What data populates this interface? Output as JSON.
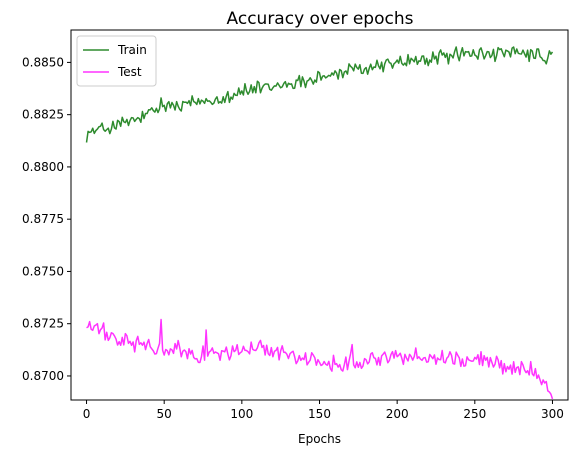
{
  "chart_data": {
    "type": "line",
    "title": "Accuracy over epochs",
    "xlabel": "Epochs",
    "ylabel": "",
    "xlim": [
      -10,
      310
    ],
    "ylim": [
      0.86885,
      0.88655
    ],
    "xticks": [
      0,
      50,
      100,
      150,
      200,
      250,
      300
    ],
    "xtick_labels": [
      "0",
      "50",
      "100",
      "150",
      "200",
      "250",
      "300"
    ],
    "yticks": [
      0.87,
      0.8725,
      0.875,
      0.8775,
      0.88,
      0.8825,
      0.885
    ],
    "ytick_labels": [
      "0.8700",
      "0.8725",
      "0.8750",
      "0.8775",
      "0.8800",
      "0.8825",
      "0.8850"
    ],
    "grid": false,
    "legend_position": "top-left",
    "series": [
      {
        "name": "Train",
        "color": "#2e8b2e",
        "anchors": [
          [
            0,
            0.8816
          ],
          [
            10,
            0.8818
          ],
          [
            20,
            0.882
          ],
          [
            30,
            0.8822
          ],
          [
            40,
            0.8825
          ],
          [
            50,
            0.8829
          ],
          [
            60,
            0.8829
          ],
          [
            70,
            0.8831
          ],
          [
            80,
            0.8832
          ],
          [
            90,
            0.8834
          ],
          [
            100,
            0.8836
          ],
          [
            110,
            0.8837
          ],
          [
            120,
            0.8838
          ],
          [
            130,
            0.884
          ],
          [
            140,
            0.8841
          ],
          [
            150,
            0.8843
          ],
          [
            160,
            0.8844
          ],
          [
            170,
            0.8846
          ],
          [
            180,
            0.8847
          ],
          [
            190,
            0.8849
          ],
          [
            200,
            0.885
          ],
          [
            210,
            0.8851
          ],
          [
            220,
            0.8851
          ],
          [
            230,
            0.8853
          ],
          [
            240,
            0.8854
          ],
          [
            250,
            0.8854
          ],
          [
            260,
            0.8854
          ],
          [
            270,
            0.8854
          ],
          [
            280,
            0.8854
          ],
          [
            290,
            0.8853
          ],
          [
            296,
            0.8851
          ],
          [
            300,
            0.8855
          ]
        ],
        "noise": 0.00045,
        "spikes": [
          [
            48,
            0.8833
          ],
          [
            110,
            0.8841
          ],
          [
            150,
            0.8845
          ],
          [
            242,
            0.8857
          ]
        ]
      },
      {
        "name": "Test",
        "color": "#ff33ff",
        "anchors": [
          [
            0,
            0.8724
          ],
          [
            10,
            0.8721
          ],
          [
            20,
            0.8717
          ],
          [
            30,
            0.8716
          ],
          [
            40,
            0.8714
          ],
          [
            50,
            0.8712
          ],
          [
            60,
            0.8712
          ],
          [
            70,
            0.871
          ],
          [
            80,
            0.8711
          ],
          [
            90,
            0.8711
          ],
          [
            100,
            0.8712
          ],
          [
            110,
            0.8713
          ],
          [
            120,
            0.8712
          ],
          [
            130,
            0.8711
          ],
          [
            140,
            0.8708
          ],
          [
            150,
            0.8706
          ],
          [
            160,
            0.8706
          ],
          [
            170,
            0.8707
          ],
          [
            180,
            0.8708
          ],
          [
            190,
            0.8709
          ],
          [
            200,
            0.8709
          ],
          [
            210,
            0.8709
          ],
          [
            220,
            0.8709
          ],
          [
            230,
            0.8709
          ],
          [
            240,
            0.8708
          ],
          [
            250,
            0.8707
          ],
          [
            260,
            0.8707
          ],
          [
            270,
            0.8705
          ],
          [
            280,
            0.8704
          ],
          [
            290,
            0.8702
          ],
          [
            296,
            0.8697
          ],
          [
            300,
            0.8689
          ]
        ],
        "noise": 0.0005,
        "spikes": [
          [
            2,
            0.8726
          ],
          [
            48,
            0.8727
          ],
          [
            77,
            0.8722
          ],
          [
            112,
            0.8717
          ],
          [
            171,
            0.8715
          ]
        ]
      }
    ]
  }
}
